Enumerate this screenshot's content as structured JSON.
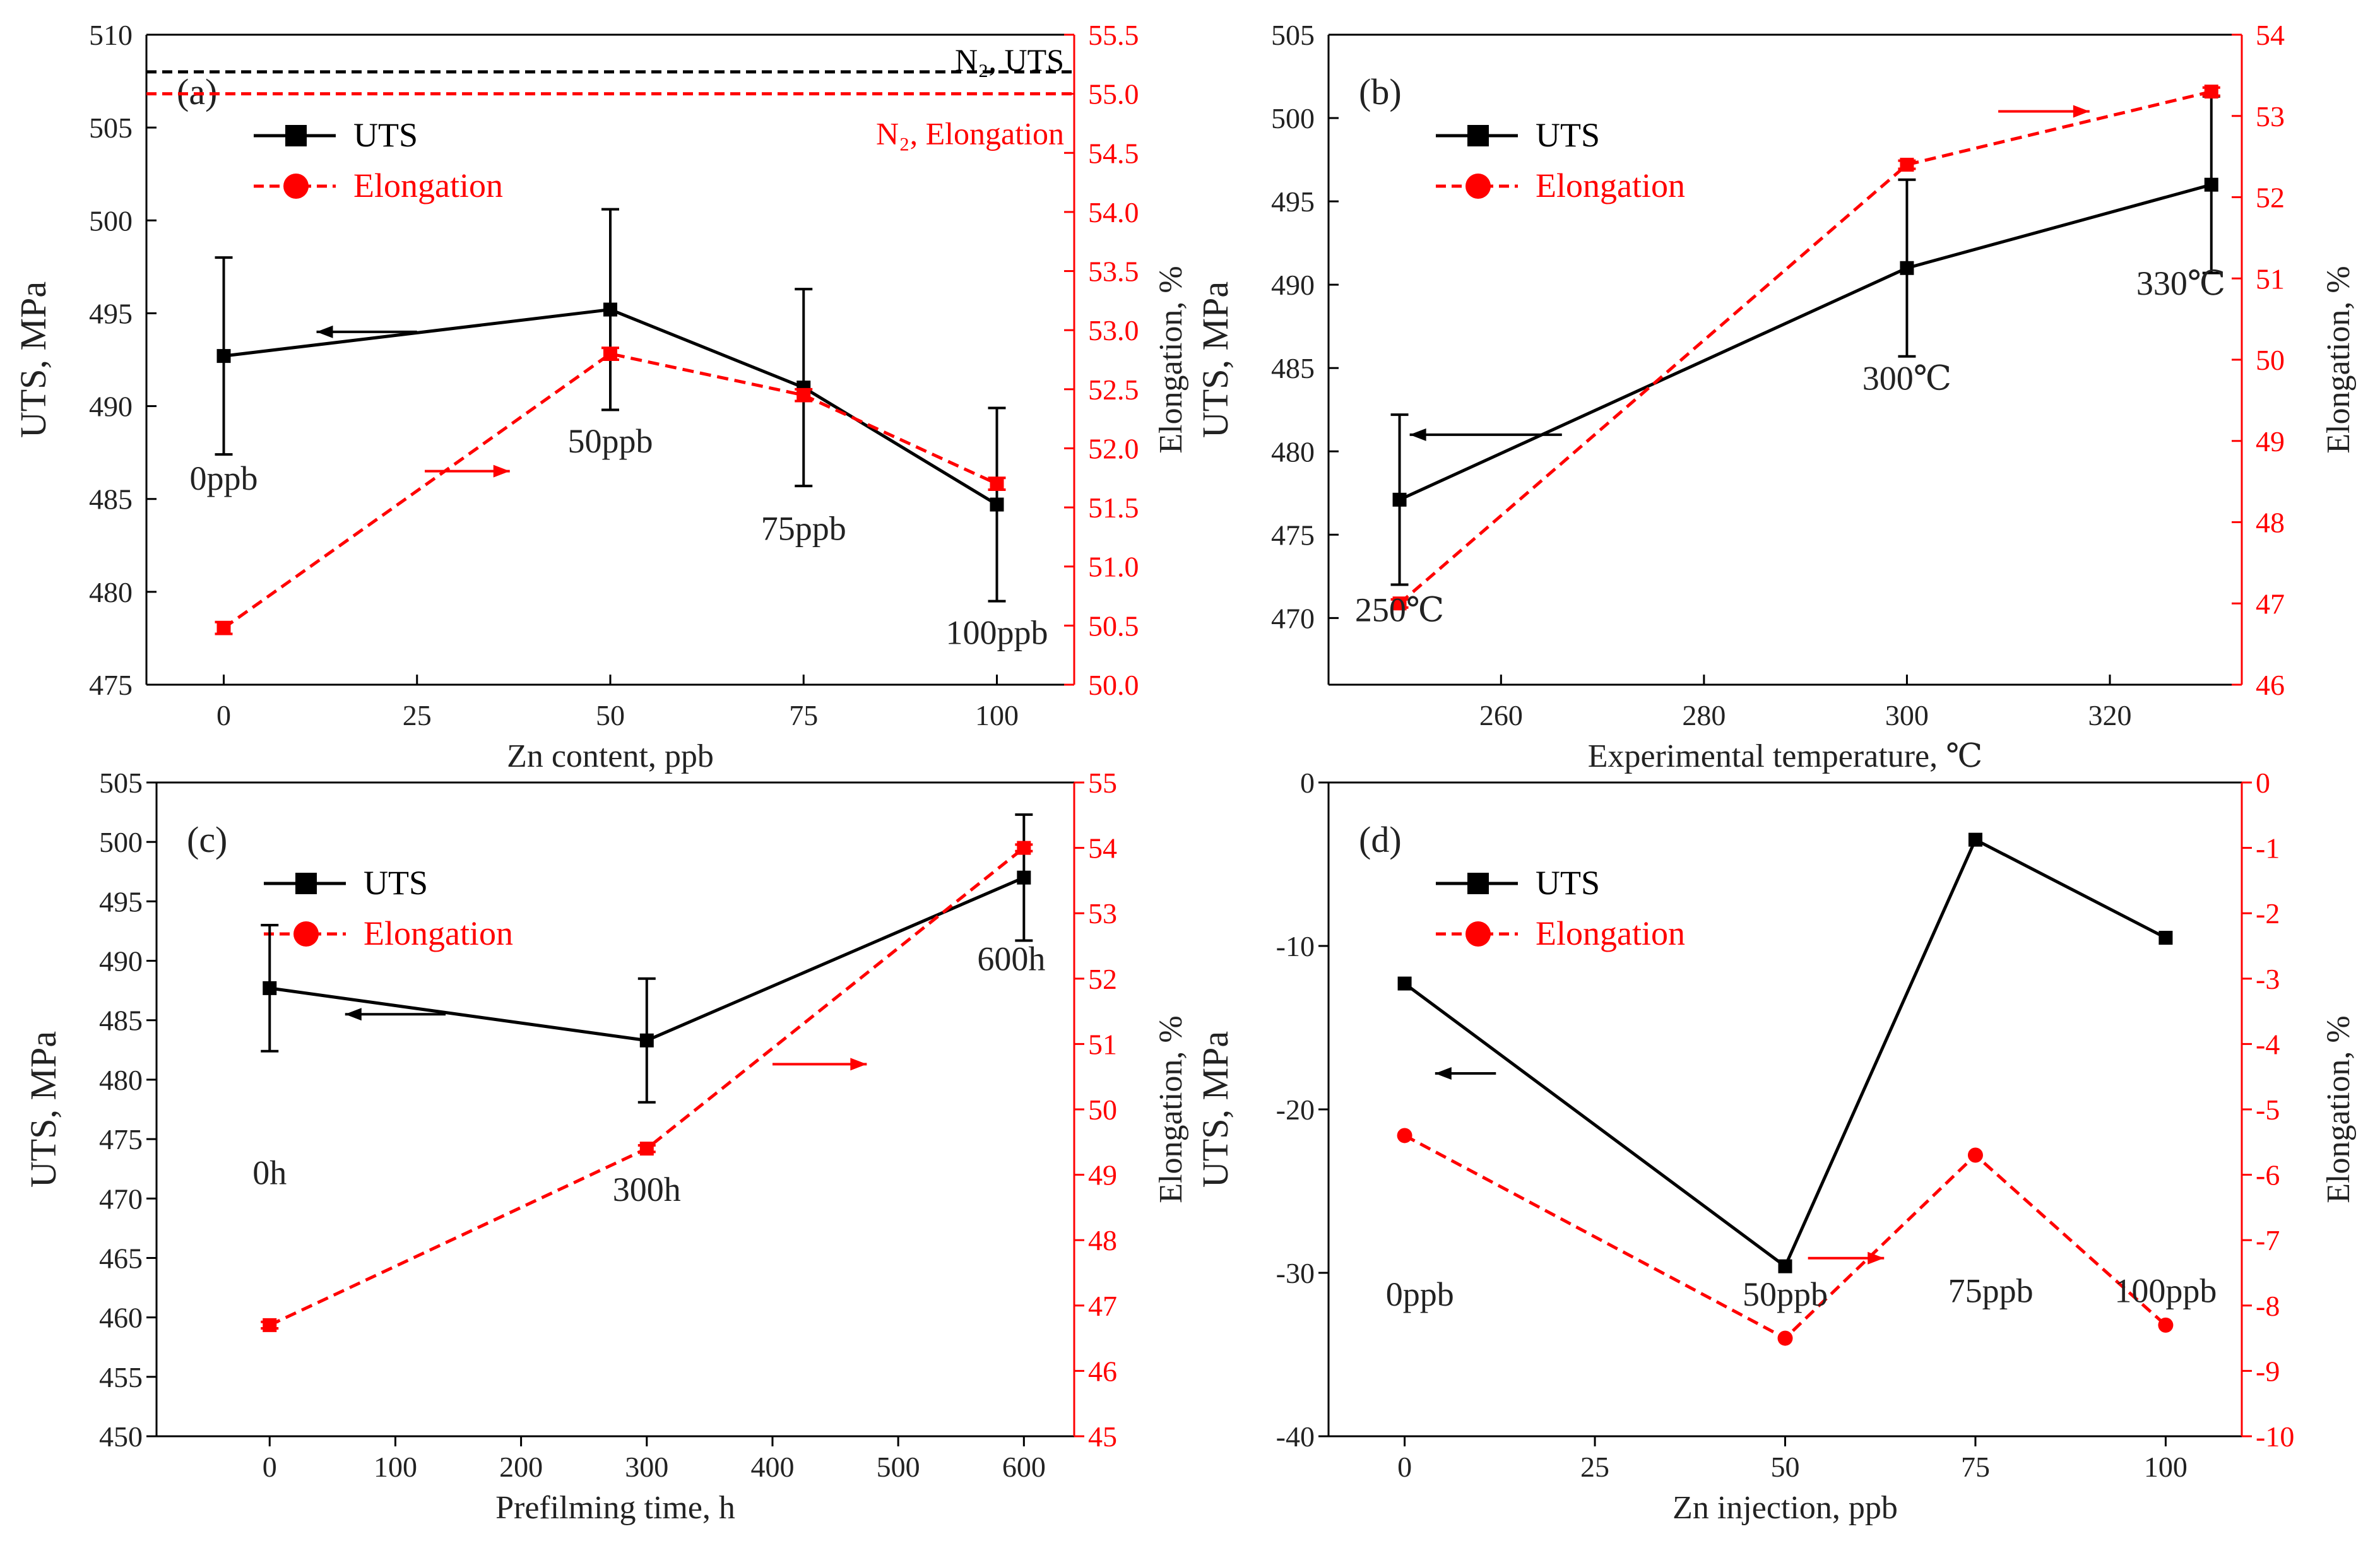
{
  "colors": {
    "uts": "#000000",
    "elong": "#ff0000"
  },
  "chart_data": [
    {
      "type": "line",
      "panel_label": "(a)",
      "xlabel": "Zn content, ppb",
      "ylabel_left": "UTS, MPa",
      "ylabel_right": "Elongation, %",
      "xlim": [
        -10,
        110
      ],
      "xticks": [
        0,
        25,
        50,
        75,
        100
      ],
      "ylim_left": [
        475,
        510
      ],
      "yticks_left": [
        475,
        480,
        485,
        490,
        495,
        500,
        505,
        510
      ],
      "ylim_right": [
        50.0,
        55.5
      ],
      "yticks_right": [
        "50.0",
        "50.5",
        "51.0",
        "51.5",
        "52.0",
        "52.5",
        "53.0",
        "53.5",
        "54.0",
        "54.5",
        "55.0",
        "55.5"
      ],
      "legend": {
        "position": "top-left",
        "uts": "UTS",
        "elong": "Elongation"
      },
      "series": [
        {
          "name": "UTS",
          "axis": "left",
          "style": "solid",
          "marker": "square",
          "x": [
            0,
            50,
            75,
            100
          ],
          "y": [
            492.7,
            495.2,
            491.0,
            484.7
          ],
          "err": [
            5.3,
            5.4,
            5.3,
            5.2
          ]
        },
        {
          "name": "Elongation",
          "axis": "right",
          "style": "dashed",
          "marker": "square",
          "x": [
            0,
            50,
            75,
            100
          ],
          "y": [
            50.48,
            52.8,
            52.45,
            51.7
          ],
          "err": [
            0.05,
            0.05,
            0.05,
            0.05
          ]
        }
      ],
      "reference_lines": [
        {
          "label": "N₂, UTS",
          "axis": "left",
          "value": 508,
          "color": "#000000"
        },
        {
          "label": "N₂, Elongation",
          "axis": "right",
          "value": 55.0,
          "color": "#ff0000"
        }
      ],
      "annotations": [
        {
          "text": "0ppb",
          "x": 0,
          "y": 485.5
        },
        {
          "text": "50ppb",
          "x": 50,
          "y": 487.5
        },
        {
          "text": "75ppb",
          "x": 75,
          "y": 482.8
        },
        {
          "text": "100ppb",
          "x": 100,
          "y": 477.2
        }
      ],
      "arrows": [
        {
          "axis": "left",
          "dir": "left",
          "x1": 25,
          "x2": 12,
          "y": 494.0
        },
        {
          "axis": "left",
          "dir": "right",
          "x1": 26,
          "x2": 37,
          "y": 486.5
        }
      ]
    },
    {
      "type": "line",
      "panel_label": "(b)",
      "xlabel": "Experimental temperature, ℃",
      "ylabel_left": "UTS, MPa",
      "ylabel_right": "Elongation, %",
      "xlim": [
        243,
        333
      ],
      "xticks": [
        260,
        280,
        300,
        320
      ],
      "ylim_left": [
        466,
        505
      ],
      "yticks_left": [
        470,
        475,
        480,
        485,
        490,
        495,
        500,
        505
      ],
      "ylim_right": [
        46,
        54
      ],
      "yticks_right": [
        "46",
        "47",
        "48",
        "49",
        "50",
        "51",
        "52",
        "53",
        "54"
      ],
      "legend": {
        "position": "top-left",
        "uts": "UTS",
        "elong": "Elongation"
      },
      "series": [
        {
          "name": "UTS",
          "axis": "left",
          "style": "solid",
          "marker": "square",
          "x": [
            250,
            300,
            330
          ],
          "y": [
            477.1,
            491.0,
            496.0
          ],
          "err": [
            5.1,
            5.3,
            5.3
          ]
        },
        {
          "name": "Elongation",
          "axis": "right",
          "style": "dashed",
          "marker": "square",
          "x": [
            250,
            300,
            330
          ],
          "y": [
            47.0,
            52.4,
            53.3
          ],
          "err": [
            0.05,
            0.05,
            0.05
          ]
        }
      ],
      "annotations": [
        {
          "text": "250℃",
          "x": 250,
          "y": 469.8
        },
        {
          "text": "300℃",
          "x": 300,
          "y": 483.7
        },
        {
          "text": "330℃",
          "x": 327,
          "y": 489.4
        }
      ],
      "arrows": [
        {
          "axis": "left",
          "dir": "left",
          "x1": 266,
          "x2": 251,
          "y": 481.0
        },
        {
          "axis": "left",
          "dir": "right",
          "x1": 309,
          "x2": 318,
          "y": 500.4
        }
      ]
    },
    {
      "type": "line",
      "panel_label": "(c)",
      "xlabel": "Prefilming time, h",
      "ylabel_left": "UTS, MPa",
      "ylabel_right": "Elongation, %",
      "xlim": [
        -90,
        640
      ],
      "xticks": [
        0,
        100,
        200,
        300,
        400,
        500,
        600
      ],
      "ylim_left": [
        450,
        505
      ],
      "yticks_left": [
        450,
        455,
        460,
        465,
        470,
        475,
        480,
        485,
        490,
        495,
        500,
        505
      ],
      "ylim_right": [
        45,
        55
      ],
      "yticks_right": [
        "45",
        "46",
        "47",
        "48",
        "49",
        "50",
        "51",
        "52",
        "53",
        "54",
        "55"
      ],
      "legend": {
        "position": "top-left",
        "uts": "UTS",
        "elong": "Elongation"
      },
      "series": [
        {
          "name": "UTS",
          "axis": "left",
          "style": "solid",
          "marker": "square",
          "x": [
            0,
            300,
            600
          ],
          "y": [
            487.7,
            483.3,
            497.0
          ],
          "err": [
            5.3,
            5.2,
            5.3
          ]
        },
        {
          "name": "Elongation",
          "axis": "right",
          "style": "dashed",
          "marker": "square",
          "x": [
            0,
            300,
            600
          ],
          "y": [
            46.7,
            49.4,
            54.0
          ],
          "err": [
            0.05,
            0.05,
            0.05
          ]
        }
      ],
      "annotations": [
        {
          "text": "0h",
          "x": 0,
          "y": 471.2
        },
        {
          "text": "300h",
          "x": 300,
          "y": 469.8
        },
        {
          "text": "600h",
          "x": 590,
          "y": 489.2
        }
      ],
      "arrows": [
        {
          "axis": "left",
          "dir": "left",
          "x1": 140,
          "x2": 60,
          "y": 485.5
        },
        {
          "axis": "left",
          "dir": "right",
          "x1": 400,
          "x2": 475,
          "y": 481.3
        }
      ]
    },
    {
      "type": "line",
      "panel_label": "(d)",
      "xlabel": "Zn injection, ppb",
      "ylabel_left": "UTS, MPa",
      "ylabel_right": "Elongation, %",
      "xlim": [
        -10,
        110
      ],
      "xticks": [
        0,
        25,
        50,
        75,
        100
      ],
      "ylim_left": [
        -40,
        0
      ],
      "yticks_left": [
        -40,
        -30,
        -20,
        -10,
        0
      ],
      "ylim_right": [
        -10,
        0
      ],
      "yticks_right": [
        "-10",
        "-9",
        "-8",
        "-7",
        "-6",
        "-5",
        "-4",
        "-3",
        "-2",
        "-1",
        "0"
      ],
      "legend": {
        "position": "top-left",
        "uts": "UTS",
        "elong": "Elongation"
      },
      "series": [
        {
          "name": "UTS",
          "axis": "left",
          "style": "solid",
          "marker": "square",
          "x": [
            0,
            50,
            75,
            100
          ],
          "y": [
            -12.3,
            -29.6,
            -3.5,
            -9.5
          ]
        },
        {
          "name": "Elongation",
          "axis": "right",
          "style": "dashed",
          "marker": "circle",
          "x": [
            0,
            50,
            75,
            100
          ],
          "y": [
            -5.4,
            -8.5,
            -5.7,
            -8.3
          ]
        }
      ],
      "annotations": [
        {
          "text": "0ppb",
          "x": 2,
          "y": -32.0
        },
        {
          "text": "50ppb",
          "x": 50,
          "y": -32.0
        },
        {
          "text": "75ppb",
          "x": 77,
          "y": -31.8
        },
        {
          "text": "100ppb",
          "x": 100,
          "y": -31.8
        }
      ],
      "arrows": [
        {
          "axis": "left",
          "dir": "left",
          "x1": 12,
          "x2": 4,
          "y": -17.8
        },
        {
          "axis": "left",
          "dir": "right",
          "x1": 53,
          "x2": 63,
          "y": -29.1
        }
      ]
    }
  ]
}
